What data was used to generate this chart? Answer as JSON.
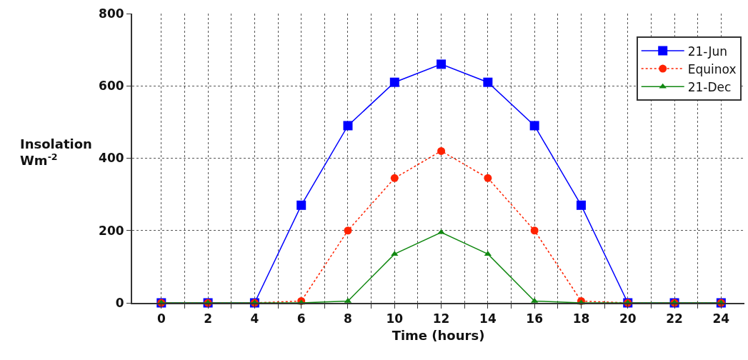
{
  "chart_data": {
    "type": "line",
    "xlabel": "Time (hours)",
    "ylabel": "Insolation\nWm$^{-2}$",
    "x": [
      0,
      2,
      4,
      6,
      8,
      10,
      12,
      14,
      16,
      18,
      20,
      22,
      24
    ],
    "series": [
      {
        "name": "21-Jun",
        "color": "#0000ff",
        "marker": "square",
        "line_style": "solid",
        "values": [
          0,
          0,
          0,
          270,
          490,
          610,
          660,
          610,
          490,
          270,
          0,
          0,
          0
        ]
      },
      {
        "name": "Equinox",
        "color": "#ff2200",
        "marker": "circle",
        "line_style": "dotted",
        "values": [
          0,
          0,
          0,
          5,
          200,
          345,
          420,
          345,
          200,
          5,
          0,
          0,
          0
        ]
      },
      {
        "name": "21-Dec",
        "color": "#118811",
        "marker": "triangle",
        "line_style": "solid",
        "values": [
          0,
          0,
          0,
          0,
          5,
          135,
          195,
          135,
          5,
          0,
          0,
          0,
          0
        ]
      }
    ],
    "xlim": [
      -1.25,
      25
    ],
    "xticks": [
      0,
      {
        "value": 1,
        "label": null
      },
      2,
      {
        "value": 3,
        "label": null
      },
      4,
      {
        "value": 5,
        "label": null
      },
      6,
      {
        "value": 7,
        "label": null
      },
      8,
      {
        "value": 9,
        "label": null
      },
      10,
      {
        "value": 11,
        "label": null
      },
      12,
      {
        "value": 13,
        "label": null
      },
      14,
      {
        "value": 15,
        "label": null
      },
      16,
      {
        "value": 17,
        "label": null
      },
      18,
      {
        "value": 19,
        "label": null
      },
      20,
      {
        "value": 21,
        "label": null
      },
      22,
      {
        "value": 23,
        "label": null
      },
      24
    ],
    "ylim": [
      0,
      800
    ],
    "yticks": [
      0,
      200,
      400,
      600,
      800
    ],
    "grid": true,
    "legend": "top right"
  }
}
